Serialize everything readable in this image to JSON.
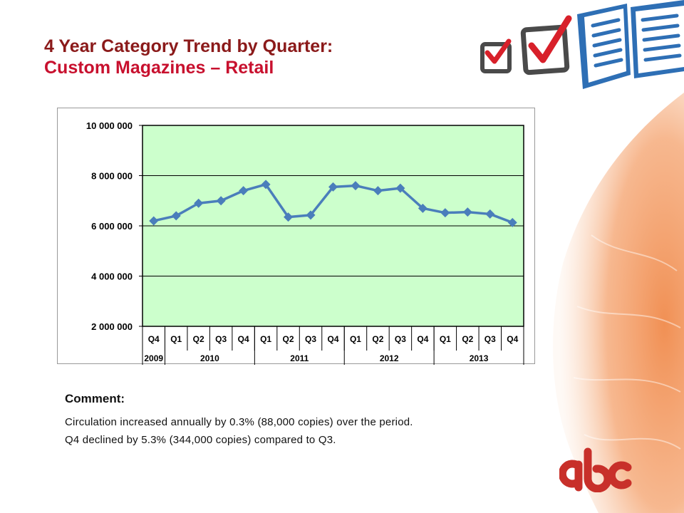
{
  "slide": {
    "title_line1": "4 Year Category Trend by Quarter:",
    "title_line2": "Custom Magazines – Retail"
  },
  "comment": {
    "heading": "Comment:",
    "line1": "Circulation increased annually by 0.3% (88,000 copies) over the period.",
    "line2": "Q4 declined by 5.3% (344,000 copies) compared to Q3."
  },
  "logo": {
    "text": "abc"
  },
  "colors": {
    "title_dark": "#8B1A1A",
    "title_red": "#C8102E",
    "plot_bg": "#CCFFCC",
    "series": "#4A7EBB",
    "logo_red": "#C8302A"
  },
  "chart_data": {
    "type": "line",
    "categories": [
      "Q4",
      "Q1",
      "Q2",
      "Q3",
      "Q4",
      "Q1",
      "Q2",
      "Q3",
      "Q4",
      "Q1",
      "Q2",
      "Q3",
      "Q4",
      "Q1",
      "Q2",
      "Q3",
      "Q4"
    ],
    "years": [
      {
        "label": "2009",
        "quarters": 1
      },
      {
        "label": "2010",
        "quarters": 4
      },
      {
        "label": "2011",
        "quarters": 4
      },
      {
        "label": "2012",
        "quarters": 4
      },
      {
        "label": "2013",
        "quarters": 4
      }
    ],
    "series": [
      {
        "values": [
          6200000,
          6400000,
          6900000,
          7000000,
          7400000,
          7650000,
          6350000,
          6430000,
          7550000,
          7600000,
          7400000,
          7500000,
          6700000,
          6520000,
          6550000,
          6470000,
          6130000
        ]
      }
    ],
    "yticks": [
      "10 000 000",
      "8 000 000",
      "6 000 000",
      "4 000 000",
      "2 000 000"
    ],
    "ytick_values": [
      10000000,
      8000000,
      6000000,
      4000000,
      2000000
    ],
    "ylim": [
      2000000,
      10000000
    ],
    "grid": "horizontal",
    "marker": "diamond"
  }
}
